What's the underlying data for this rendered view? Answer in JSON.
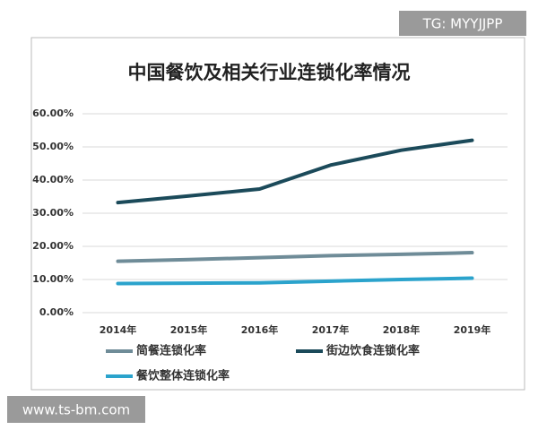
{
  "chart_data": {
    "type": "line",
    "title": "中国餐饮及相关行业连锁化率情况",
    "categories": [
      "2014年",
      "2015年",
      "2016年",
      "2017年",
      "2018年",
      "2019年"
    ],
    "series": [
      {
        "name": "简餐连锁化率",
        "color": "#6f8c98",
        "values": [
          15.5,
          16.0,
          16.6,
          17.2,
          17.6,
          18.1
        ]
      },
      {
        "name": "街边饮食连锁化率",
        "color": "#1b4a5a",
        "values": [
          33.2,
          35.2,
          37.3,
          44.5,
          49.0,
          52.0
        ]
      },
      {
        "name": "餐饮整体连锁化率",
        "color": "#2ba3cc",
        "values": [
          8.8,
          8.9,
          9.0,
          9.5,
          10.0,
          10.4
        ]
      }
    ],
    "ylim": [
      0,
      60
    ],
    "yticks": [
      {
        "value": 0,
        "label": "0.00%"
      },
      {
        "value": 10,
        "label": "10.00%"
      },
      {
        "value": 20,
        "label": "20.00%"
      },
      {
        "value": 30,
        "label": "30.00%"
      },
      {
        "value": 40,
        "label": "40.00%"
      },
      {
        "value": 50,
        "label": "50.00%"
      },
      {
        "value": 60,
        "label": "60.00%"
      }
    ],
    "grid": true
  },
  "watermarks": {
    "top": "TG: MYYJJPP",
    "bottom": "www.ts-bm.com"
  }
}
